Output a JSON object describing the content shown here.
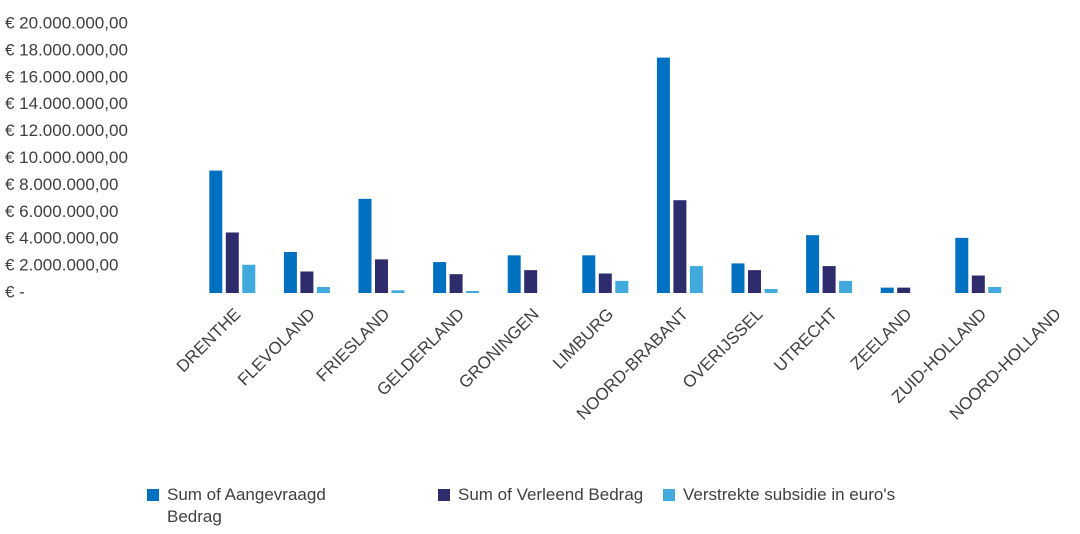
{
  "chart_data": {
    "type": "bar",
    "categories": [
      "DRENTHE",
      "FLEVOLAND",
      "FRIESLAND",
      "GELDERLAND",
      "GRONINGEN",
      "LIMBURG",
      "NOORD-BRABANT",
      "OVERIJSSEL",
      "UTRECHT",
      "ZEELAND",
      "ZUID-HOLLAND",
      "NOORD-HOLLAND"
    ],
    "series": [
      {
        "name": "Sum of Aangevraagd Bedrag",
        "color": "#0070c0",
        "values": [
          9100000,
          3050000,
          7000000,
          2300000,
          2800000,
          2800000,
          17500000,
          2200000,
          4300000,
          400000,
          4100000,
          0
        ]
      },
      {
        "name": "Sum of Verleend Bedrag",
        "color": "#2e2c6c",
        "values": [
          4500000,
          1600000,
          2500000,
          1400000,
          1700000,
          1450000,
          6900000,
          1700000,
          2000000,
          400000,
          1300000,
          0
        ]
      },
      {
        "name": "Verstrekte subsidie in euro's",
        "color": "#42a9dd",
        "values": [
          2100000,
          450000,
          200000,
          150000,
          0,
          900000,
          2000000,
          300000,
          900000,
          0,
          450000,
          0
        ]
      }
    ],
    "ylim": [
      0,
      20000000
    ],
    "yticks": [
      {
        "value": 0,
        "label": "€ -"
      },
      {
        "value": 2000000,
        "label": "€ 2.000.000,00"
      },
      {
        "value": 4000000,
        "label": "€ 4.000.000,00"
      },
      {
        "value": 6000000,
        "label": "€ 6.000.000,00"
      },
      {
        "value": 8000000,
        "label": "€ 8.000.000,00"
      },
      {
        "value": 10000000,
        "label": "€ 10.000.000,00"
      },
      {
        "value": 12000000,
        "label": "€ 12.000.000,00"
      },
      {
        "value": 14000000,
        "label": "€ 14.000.000,00"
      },
      {
        "value": 16000000,
        "label": "€ 16.000.000,00"
      },
      {
        "value": 18000000,
        "label": "€ 18.000.000,00"
      },
      {
        "value": 20000000,
        "label": "€ 20.000.000,00"
      }
    ],
    "grid": false,
    "legend": "bottom"
  }
}
